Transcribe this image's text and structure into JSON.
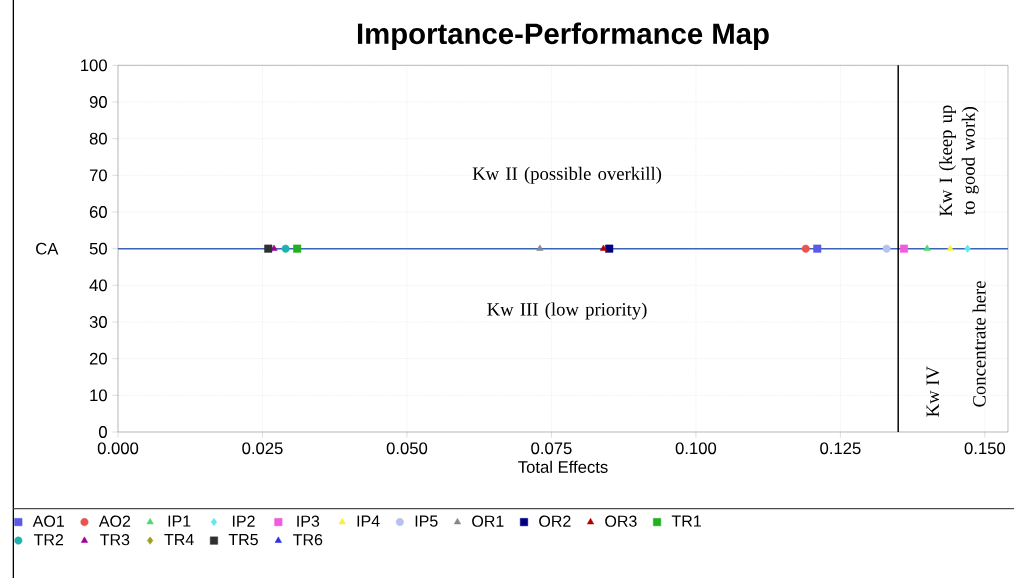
{
  "chart_data": {
    "type": "scatter",
    "title": "Importance-Performance Map",
    "xlabel": "Total Effects",
    "ylabel": "CA",
    "xlim": [
      0,
      0.154
    ],
    "xticks": [
      {
        "value": 0,
        "label": "0.000"
      },
      0.025,
      {
        "value": 0.05,
        "label": "0.050"
      },
      0.075,
      {
        "value": 0.1,
        "label": "0.100"
      },
      0.125,
      {
        "value": 0.15,
        "label": "0.150"
      }
    ],
    "ylim": [
      0,
      100
    ],
    "yticks": [
      0,
      10,
      20,
      30,
      40,
      50,
      60,
      70,
      80,
      90,
      100
    ],
    "grid": true,
    "legend": "bottom",
    "ref_lines": [
      {
        "axis": "y",
        "value": 50,
        "color": "#3c64b4"
      },
      {
        "axis": "x",
        "value": 0.135,
        "color": "#000000"
      }
    ],
    "annotations": [
      "Kw II (possible overkill)",
      "Kw III (low priority)",
      "Kw I (keep up to good work)",
      "Kw IV",
      "Concentrate here"
    ],
    "series": [
      {
        "name": "AO1",
        "color": "#5a5ae6",
        "marker": "square",
        "x": [
          0.121
        ],
        "values": [
          50
        ]
      },
      {
        "name": "AO2",
        "color": "#e8534f",
        "marker": "circle",
        "x": [
          0.119
        ],
        "values": [
          50
        ]
      },
      {
        "name": "IP1",
        "color": "#4fd870",
        "marker": "triangle",
        "x": [
          0.14
        ],
        "values": [
          50
        ]
      },
      {
        "name": "IP2",
        "color": "#5fe8f0",
        "marker": "diamond",
        "x": [
          0.147
        ],
        "values": [
          50
        ]
      },
      {
        "name": "IP3",
        "color": "#f05ce0",
        "marker": "square",
        "x": [
          0.136
        ],
        "values": [
          50
        ]
      },
      {
        "name": "IP4",
        "color": "#f8f040",
        "marker": "triangle",
        "x": [
          0.144
        ],
        "values": [
          50
        ]
      },
      {
        "name": "IP5",
        "color": "#b8c0f0",
        "marker": "circle",
        "x": [
          0.133
        ],
        "values": [
          50
        ]
      },
      {
        "name": "OR1",
        "color": "#808890",
        "marker": "triangle",
        "x": [
          0.073
        ],
        "values": [
          50
        ]
      },
      {
        "name": "OR2",
        "color": "#000080",
        "marker": "square",
        "x": [
          0.085
        ],
        "values": [
          50
        ]
      },
      {
        "name": "OR3",
        "color": "#b00000",
        "marker": "triangle",
        "x": [
          0.084
        ],
        "values": [
          50
        ]
      },
      {
        "name": "TR1",
        "color": "#20b020",
        "marker": "square",
        "x": [
          0.031
        ],
        "values": [
          50
        ]
      },
      {
        "name": "TR2",
        "color": "#20b0b0",
        "marker": "circle",
        "x": [
          0.029
        ],
        "values": [
          50
        ]
      },
      {
        "name": "TR3",
        "color": "#a000a0",
        "marker": "triangle",
        "x": [
          0.027
        ],
        "values": [
          50
        ]
      },
      {
        "name": "TR4",
        "color": "#a0a020",
        "marker": "diamond",
        "x": [
          null
        ],
        "values": [
          null
        ]
      },
      {
        "name": "TR5",
        "color": "#303030",
        "marker": "square",
        "x": [
          0.026
        ],
        "values": [
          50
        ]
      },
      {
        "name": "TR6",
        "color": "#3030e0",
        "marker": "triangle",
        "x": [
          null
        ],
        "values": [
          null
        ]
      }
    ]
  }
}
